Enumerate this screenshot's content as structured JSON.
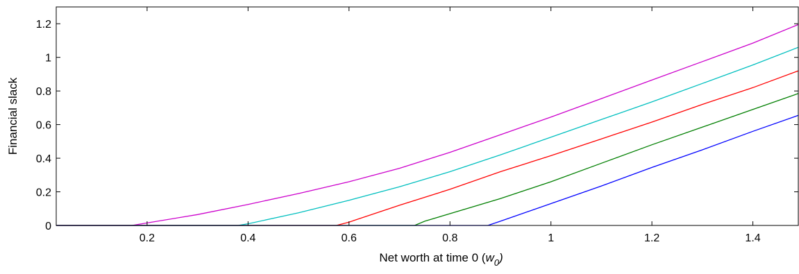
{
  "chart_data": {
    "type": "line",
    "title": "",
    "xlabel_main": "Net worth at time 0 (",
    "xlabel_var": "w",
    "xlabel_sub": "0",
    "xlabel_close": ")",
    "ylabel": "Financial slack",
    "xlim": [
      0.02,
      1.49
    ],
    "ylim": [
      0,
      1.3
    ],
    "xticks": [
      0.2,
      0.4,
      0.6,
      0.8,
      1,
      1.2,
      1.4
    ],
    "xtick_labels": [
      "0.2",
      "0.4",
      "0.6",
      "0.8",
      "1",
      "1.2",
      "1.4"
    ],
    "yticks": [
      0,
      0.2,
      0.4,
      0.6,
      0.8,
      1,
      1.2
    ],
    "ytick_labels": [
      "0",
      "0.2",
      "0.4",
      "0.6",
      "0.8",
      "1",
      "1.2"
    ],
    "grid": false,
    "series": [
      {
        "color": "#cc00cc",
        "x": [
          0.02,
          0.17,
          0.2,
          0.3,
          0.4,
          0.5,
          0.6,
          0.7,
          0.8,
          0.9,
          1.0,
          1.1,
          1.2,
          1.3,
          1.4,
          1.49
        ],
        "y": [
          0,
          0,
          0.015,
          0.065,
          0.125,
          0.19,
          0.26,
          0.34,
          0.435,
          0.54,
          0.645,
          0.755,
          0.865,
          0.975,
          1.085,
          1.195
        ]
      },
      {
        "color": "#00bfbf",
        "x": [
          0.02,
          0.38,
          0.4,
          0.5,
          0.6,
          0.7,
          0.8,
          0.9,
          1.0,
          1.1,
          1.2,
          1.3,
          1.4,
          1.49
        ],
        "y": [
          0,
          0,
          0.01,
          0.075,
          0.15,
          0.23,
          0.32,
          0.42,
          0.525,
          0.63,
          0.735,
          0.845,
          0.955,
          1.06
        ]
      },
      {
        "color": "#ff0000",
        "x": [
          0.02,
          0.575,
          0.6,
          0.7,
          0.8,
          0.9,
          1.0,
          1.1,
          1.2,
          1.3,
          1.4,
          1.49
        ],
        "y": [
          0,
          0,
          0.02,
          0.12,
          0.215,
          0.32,
          0.415,
          0.515,
          0.615,
          0.72,
          0.82,
          0.92
        ]
      },
      {
        "color": "#007f00",
        "x": [
          0.02,
          0.73,
          0.75,
          0.8,
          0.9,
          1.0,
          1.1,
          1.2,
          1.3,
          1.4,
          1.49
        ],
        "y": [
          0,
          0,
          0.025,
          0.07,
          0.16,
          0.26,
          0.37,
          0.48,
          0.585,
          0.69,
          0.785
        ]
      },
      {
        "color": "#0000ff",
        "x": [
          0.02,
          0.875,
          0.9,
          1.0,
          1.1,
          1.2,
          1.3,
          1.4,
          1.49
        ],
        "y": [
          0,
          0,
          0.025,
          0.13,
          0.235,
          0.345,
          0.45,
          0.56,
          0.655
        ]
      }
    ]
  }
}
